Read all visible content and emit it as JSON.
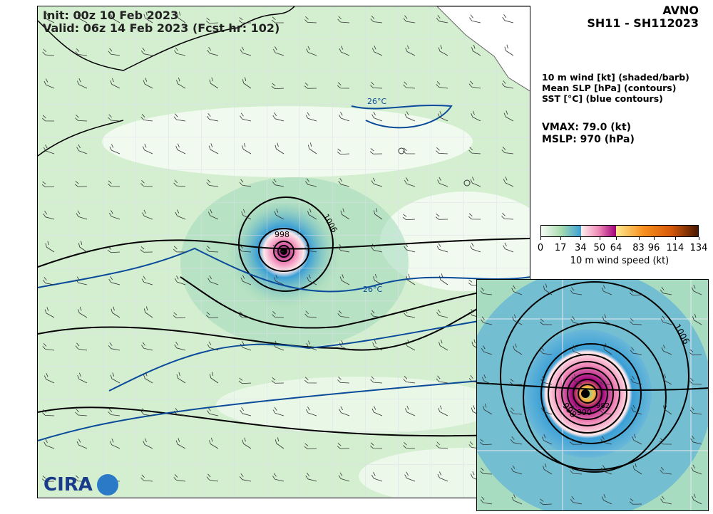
{
  "header": {
    "init": "Init:   00z 10 Feb 2023",
    "valid": "Valid: 06z 14 Feb 2023 (Fcst hr: 102)"
  },
  "model": "AVNO",
  "storm": "SH11 - SH112023",
  "legend": [
    "10 m wind [kt] (shaded/barb)",
    "Mean SLP [hPa] (contours)",
    "SST [°C] (blue contours)"
  ],
  "stats": {
    "vmax": "VMAX:  79.0 (kt)",
    "mslp": "MSLP:  970 (hPa)"
  },
  "colorbar": {
    "label": "10 m wind speed (kt)",
    "ticks": [
      "0",
      "17",
      "34",
      "50",
      "64",
      "83",
      "96",
      "114",
      "134"
    ],
    "min": 0,
    "max": 134,
    "segments": [
      {
        "from": 0,
        "to": 34,
        "colors": [
          "#f7fcf5",
          "#a8dcb0",
          "#3a9fd6"
        ]
      },
      {
        "from": 34,
        "to": 64,
        "colors": [
          "#fff0ee",
          "#f08ab8",
          "#a0007a"
        ]
      },
      {
        "from": 64,
        "to": 134,
        "colors": [
          "#ffe890",
          "#f7901e",
          "#d85a0a",
          "#4a1800"
        ]
      }
    ]
  },
  "map": {
    "contour_labels": [
      "1006",
      "998"
    ],
    "sst_labels": [
      "26°C",
      "26°C"
    ]
  },
  "inset": {
    "contour_labels": [
      "1006",
      "998",
      "990",
      "982"
    ]
  },
  "logo": "CIRA",
  "colors": {
    "slp": "#000000",
    "sst": "#0a4a9a",
    "land": "#ffffff"
  }
}
